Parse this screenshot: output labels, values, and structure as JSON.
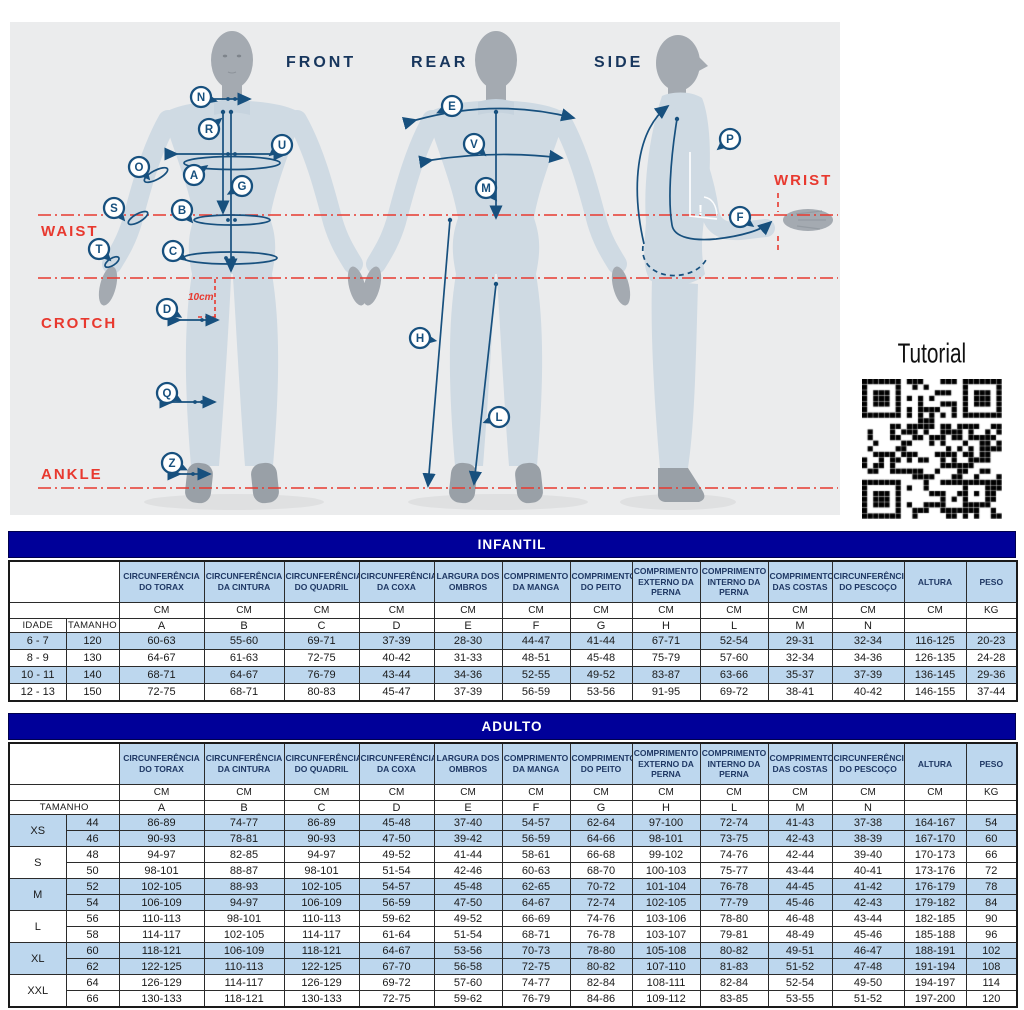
{
  "figure_panel": {
    "view_labels": {
      "front": "FRONT",
      "rear": "REAR",
      "side": "SIDE"
    },
    "red_labels": {
      "waist": "WAIST",
      "crotch": "CROTCH",
      "ankle": "ANKLE",
      "wrist": "WRIST"
    },
    "offset_note": "10cm",
    "markers": {
      "front": [
        "N",
        "R",
        "U",
        "O",
        "A",
        "G",
        "S",
        "B",
        "T",
        "C",
        "D",
        "Q",
        "Z"
      ],
      "rear": [
        "E",
        "V",
        "M",
        "H",
        "L"
      ],
      "side": [
        "P",
        "F"
      ]
    }
  },
  "tutorial": {
    "label": "Tutorial"
  },
  "colors": {
    "title_bar": "#000099",
    "row_shade": "#bdd7ee",
    "header_text": "#1f3864",
    "annotation": "#17507e",
    "red": "#e8392f",
    "panel_bg": "#ebeced"
  },
  "tables": {
    "infantil": {
      "title": "INFANTIL",
      "id_headers": [
        "IDADE",
        "TAMANHO"
      ],
      "columns": [
        {
          "name": "CIRCUNFERÊNCIA DO TORAX",
          "unit": "CM",
          "letter": "A"
        },
        {
          "name": "CIRCUNFERÊNCIA DA CINTURA",
          "unit": "CM",
          "letter": "B"
        },
        {
          "name": "CIRCUNFERÊNCIA DO QUADRIL",
          "unit": "CM",
          "letter": "C"
        },
        {
          "name": "CIRCUNFERÊNCIA DA COXA",
          "unit": "CM",
          "letter": "D"
        },
        {
          "name": "LARGURA DOS OMBROS",
          "unit": "CM",
          "letter": "E"
        },
        {
          "name": "COMPRIMENTO DA MANGA",
          "unit": "CM",
          "letter": "F"
        },
        {
          "name": "COMPRIMENTO DO PEITO",
          "unit": "CM",
          "letter": "G"
        },
        {
          "name": "COMPRIMENTO EXTERNO DA PERNA",
          "unit": "CM",
          "letter": "H"
        },
        {
          "name": "COMPRIMENTO INTERNO DA PERNA",
          "unit": "CM",
          "letter": "L"
        },
        {
          "name": "COMPRIMENTO DAS COSTAS",
          "unit": "CM",
          "letter": "M"
        },
        {
          "name": "CIRCUNFERÊNCIA DO PESCOÇO",
          "unit": "CM",
          "letter": "N"
        },
        {
          "name": "ALTURA",
          "unit": "CM",
          "letter": ""
        },
        {
          "name": "PESO",
          "unit": "KG",
          "letter": ""
        }
      ],
      "rows": [
        {
          "id": [
            "6 - 7",
            "120"
          ],
          "values": [
            "60-63",
            "55-60",
            "69-71",
            "37-39",
            "28-30",
            "44-47",
            "41-44",
            "67-71",
            "52-54",
            "29-31",
            "32-34",
            "116-125",
            "20-23"
          ]
        },
        {
          "id": [
            "8 - 9",
            "130"
          ],
          "values": [
            "64-67",
            "61-63",
            "72-75",
            "40-42",
            "31-33",
            "48-51",
            "45-48",
            "75-79",
            "57-60",
            "32-34",
            "34-36",
            "126-135",
            "24-28"
          ]
        },
        {
          "id": [
            "10 - 11",
            "140"
          ],
          "values": [
            "68-71",
            "64-67",
            "76-79",
            "43-44",
            "34-36",
            "52-55",
            "49-52",
            "83-87",
            "63-66",
            "35-37",
            "37-39",
            "136-145",
            "29-36"
          ]
        },
        {
          "id": [
            "12 - 13",
            "150"
          ],
          "values": [
            "72-75",
            "68-71",
            "80-83",
            "45-47",
            "37-39",
            "56-59",
            "53-56",
            "91-95",
            "69-72",
            "38-41",
            "40-42",
            "146-155",
            "37-44"
          ]
        }
      ]
    },
    "adulto": {
      "title": "ADULTO",
      "id_headers": [
        "TAMANHO"
      ],
      "columns": [
        {
          "name": "CIRCUNFERÊNCIA DO TORAX",
          "unit": "CM",
          "letter": "A"
        },
        {
          "name": "CIRCUNFERÊNCIA DA CINTURA",
          "unit": "CM",
          "letter": "B"
        },
        {
          "name": "CIRCUNFERÊNCIA DO QUADRIL",
          "unit": "CM",
          "letter": "C"
        },
        {
          "name": "CIRCUNFERÊNCIA DA COXA",
          "unit": "CM",
          "letter": "D"
        },
        {
          "name": "LARGURA DOS OMBROS",
          "unit": "CM",
          "letter": "E"
        },
        {
          "name": "COMPRIMENTO DA MANGA",
          "unit": "CM",
          "letter": "F"
        },
        {
          "name": "COMPRIMENTO DO PEITO",
          "unit": "CM",
          "letter": "G"
        },
        {
          "name": "COMPRIMENTO EXTERNO DA PERNA",
          "unit": "CM",
          "letter": "H"
        },
        {
          "name": "COMPRIMENTO INTERNO DA PERNA",
          "unit": "CM",
          "letter": "L"
        },
        {
          "name": "COMPRIMENTO DAS COSTAS",
          "unit": "CM",
          "letter": "M"
        },
        {
          "name": "CIRCUNFERÊNCIA DO PESCOÇO",
          "unit": "CM",
          "letter": "N"
        },
        {
          "name": "ALTURA",
          "unit": "CM",
          "letter": ""
        },
        {
          "name": "PESO",
          "unit": "KG",
          "letter": ""
        }
      ],
      "groups": [
        {
          "size": "XS",
          "rows": [
            {
              "num": "44",
              "values": [
                "86-89",
                "74-77",
                "86-89",
                "45-48",
                "37-40",
                "54-57",
                "62-64",
                "97-100",
                "72-74",
                "41-43",
                "37-38",
                "164-167",
                "54"
              ]
            },
            {
              "num": "46",
              "values": [
                "90-93",
                "78-81",
                "90-93",
                "47-50",
                "39-42",
                "56-59",
                "64-66",
                "98-101",
                "73-75",
                "42-43",
                "38-39",
                "167-170",
                "60"
              ]
            }
          ]
        },
        {
          "size": "S",
          "rows": [
            {
              "num": "48",
              "values": [
                "94-97",
                "82-85",
                "94-97",
                "49-52",
                "41-44",
                "58-61",
                "66-68",
                "99-102",
                "74-76",
                "42-44",
                "39-40",
                "170-173",
                "66"
              ]
            },
            {
              "num": "50",
              "values": [
                "98-101",
                "88-87",
                "98-101",
                "51-54",
                "42-46",
                "60-63",
                "68-70",
                "100-103",
                "75-77",
                "43-44",
                "40-41",
                "173-176",
                "72"
              ]
            }
          ]
        },
        {
          "size": "M",
          "rows": [
            {
              "num": "52",
              "values": [
                "102-105",
                "88-93",
                "102-105",
                "54-57",
                "45-48",
                "62-65",
                "70-72",
                "101-104",
                "76-78",
                "44-45",
                "41-42",
                "176-179",
                "78"
              ]
            },
            {
              "num": "54",
              "values": [
                "106-109",
                "94-97",
                "106-109",
                "56-59",
                "47-50",
                "64-67",
                "72-74",
                "102-105",
                "77-79",
                "45-46",
                "42-43",
                "179-182",
                "84"
              ]
            }
          ]
        },
        {
          "size": "L",
          "rows": [
            {
              "num": "56",
              "values": [
                "110-113",
                "98-101",
                "110-113",
                "59-62",
                "49-52",
                "66-69",
                "74-76",
                "103-106",
                "78-80",
                "46-48",
                "43-44",
                "182-185",
                "90"
              ]
            },
            {
              "num": "58",
              "values": [
                "114-117",
                "102-105",
                "114-117",
                "61-64",
                "51-54",
                "68-71",
                "76-78",
                "103-107",
                "79-81",
                "48-49",
                "45-46",
                "185-188",
                "96"
              ]
            }
          ]
        },
        {
          "size": "XL",
          "rows": [
            {
              "num": "60",
              "values": [
                "118-121",
                "106-109",
                "118-121",
                "64-67",
                "53-56",
                "70-73",
                "78-80",
                "105-108",
                "80-82",
                "49-51",
                "46-47",
                "188-191",
                "102"
              ]
            },
            {
              "num": "62",
              "values": [
                "122-125",
                "110-113",
                "122-125",
                "67-70",
                "56-58",
                "72-75",
                "80-82",
                "107-110",
                "81-83",
                "51-52",
                "47-48",
                "191-194",
                "108"
              ]
            }
          ]
        },
        {
          "size": "XXL",
          "rows": [
            {
              "num": "64",
              "values": [
                "126-129",
                "114-117",
                "126-129",
                "69-72",
                "57-60",
                "74-77",
                "82-84",
                "108-111",
                "82-84",
                "52-54",
                "49-50",
                "194-197",
                "114"
              ]
            },
            {
              "num": "66",
              "values": [
                "130-133",
                "118-121",
                "130-133",
                "72-75",
                "59-62",
                "76-79",
                "84-86",
                "109-112",
                "83-85",
                "53-55",
                "51-52",
                "197-200",
                "120"
              ]
            }
          ]
        }
      ]
    }
  }
}
